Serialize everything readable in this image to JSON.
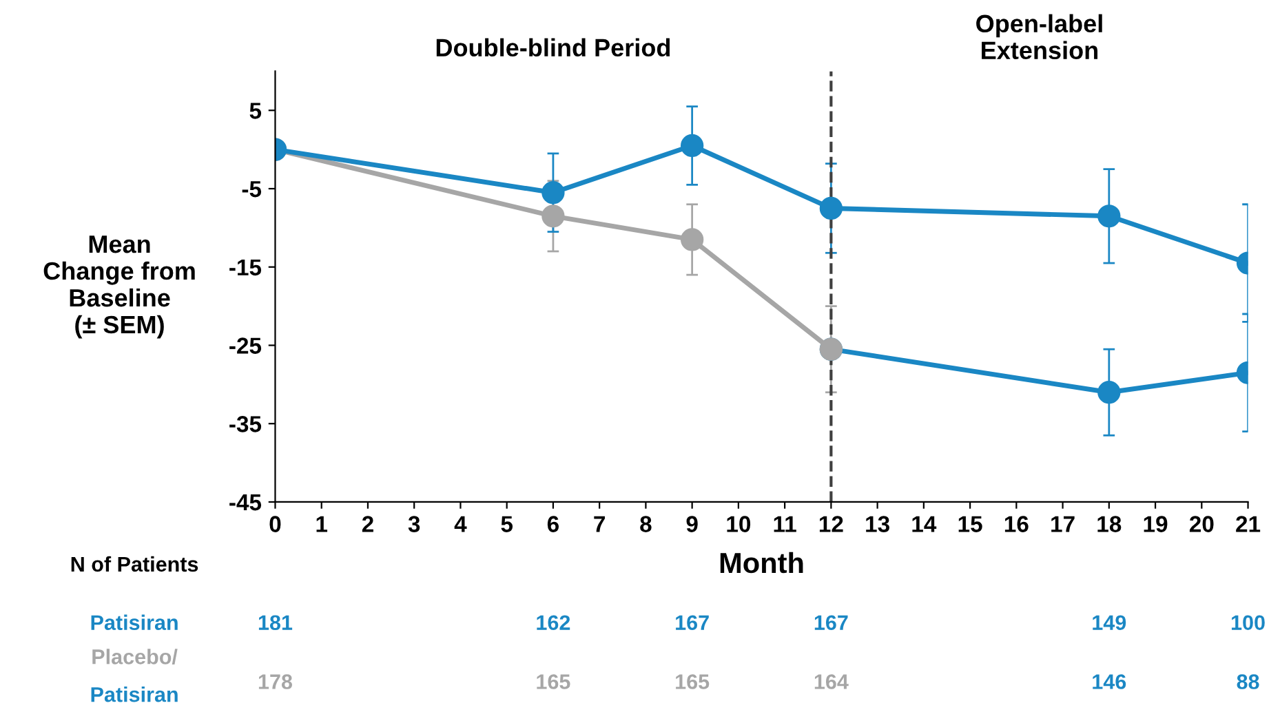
{
  "chart_data": {
    "type": "line",
    "xlabel": "Month",
    "ylabel": "Mean\nChange from\nBaseline\n(± SEM)",
    "xlim": [
      0,
      21
    ],
    "xticks": [
      0,
      1,
      2,
      3,
      4,
      5,
      6,
      7,
      8,
      9,
      10,
      11,
      12,
      13,
      14,
      15,
      16,
      17,
      18,
      19,
      20,
      21
    ],
    "ylim": [
      -45,
      10
    ],
    "yticks": [
      5,
      -5,
      -15,
      -25,
      -35,
      -45
    ],
    "marker": "circle",
    "grid": false,
    "legend": false,
    "series": [
      {
        "color": "#1a87c4",
        "x": [
          0,
          6,
          9,
          12,
          18,
          21
        ],
        "values": [
          0,
          -5.5,
          0.5,
          -7.5,
          -8.5,
          -14.5
        ],
        "errors": [
          null,
          5,
          5,
          5.7,
          6,
          7.5
        ]
      },
      {
        "color": "#a6a6a6",
        "x": [
          0,
          6,
          9,
          12
        ],
        "values": [
          0,
          -8.5,
          -11.5,
          -25.5
        ],
        "errors": [
          null,
          4.5,
          4.5,
          5.5
        ]
      },
      {
        "color": "#1a87c4",
        "x": [
          12,
          18,
          21
        ],
        "values": [
          -25.5,
          -31,
          -28.5
        ],
        "errors": [
          null,
          5.5,
          7.5
        ]
      }
    ],
    "ref_lines": [
      {
        "axis": "x",
        "value": 12,
        "line_style": "dashed",
        "color": "#404040"
      }
    ],
    "annotations": [
      "Double-blind Period",
      "Open-label\nExtension",
      "N of Patients",
      "Patisiran",
      "181",
      "162",
      "167",
      "167",
      "149",
      "100",
      "Placebo/",
      "Patisiran",
      "178",
      "165",
      "165",
      "164",
      "146",
      "88"
    ]
  }
}
